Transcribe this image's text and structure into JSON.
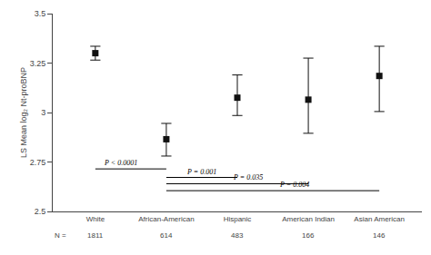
{
  "chart_data": {
    "type": "errorbar",
    "ylabel": "LS Mean log₂ Nt-proBNP",
    "categories": [
      "White",
      "African-American",
      "Hispanic",
      "American Indian",
      "Asian American"
    ],
    "values": [
      3.3,
      2.865,
      3.075,
      3.065,
      3.185
    ],
    "ci_lower": [
      3.265,
      2.78,
      2.985,
      2.895,
      3.005
    ],
    "ci_upper": [
      3.335,
      2.945,
      3.19,
      3.275,
      3.335
    ],
    "sample_size_label": "N =",
    "sample_sizes": [
      1811,
      614,
      483,
      166,
      146
    ],
    "significance_bars": [
      {
        "from": "White",
        "to": "African-American",
        "y": 2.715,
        "label": "P < 0.0001"
      },
      {
        "from": "African-American",
        "to": "Hispanic",
        "y": 2.672,
        "label": "P = 0.001"
      },
      {
        "from": "African-American",
        "to": "American Indian",
        "y": 2.64,
        "label": "P = 0.035"
      },
      {
        "from": "African-American",
        "to": "Asian American",
        "y": 2.605,
        "label": "P = 0.004"
      }
    ],
    "ylim": [
      2.5,
      3.5
    ],
    "yticks": [
      2.5,
      2.75,
      3,
      3.25,
      3.5
    ],
    "color": "#111111",
    "marker": "square",
    "grid": false
  }
}
